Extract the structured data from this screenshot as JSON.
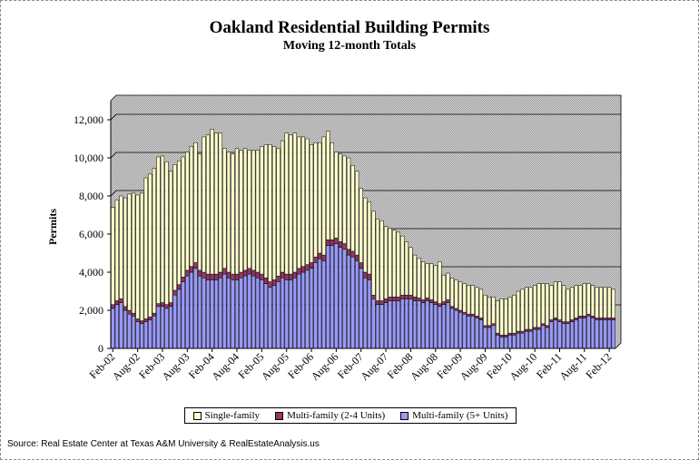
{
  "colors": {
    "single": "#FFFFCC",
    "multi_small": "#993366",
    "multi_large": "#9999FF",
    "plot_bg": "#C0C0C0"
  },
  "chart_data": {
    "type": "bar",
    "stacked": true,
    "title": "Oakland Residential Building Permits",
    "subtitle": "Moving 12-month Totals",
    "ylabel": "Permits",
    "xlabel": "",
    "ylim": [
      0,
      13000
    ],
    "yticks": [
      0,
      2000,
      4000,
      6000,
      8000,
      10000,
      12000
    ],
    "ytick_labels": [
      "0",
      "2,000",
      "4,000",
      "6,000",
      "8,000",
      "10,000",
      "12,000"
    ],
    "xtick_labels": [
      "Feb-02",
      "Aug-02",
      "Feb-03",
      "Aug-03",
      "Feb-04",
      "Aug-04",
      "Feb-05",
      "Aug-05",
      "Feb-06",
      "Aug-06",
      "Feb-07",
      "Aug-07",
      "Feb-08",
      "Aug-08",
      "Feb-09",
      "Aug-09",
      "Feb-10",
      "Aug-10",
      "Feb-11",
      "Aug-11",
      "Feb-12"
    ],
    "grid": true,
    "legend_position": "bottom",
    "series": [
      {
        "name": "Multi-family (5+ Units)",
        "values": [
          2100,
          2300,
          2400,
          2000,
          1800,
          1700,
          1400,
          1300,
          1400,
          1500,
          1700,
          2200,
          2200,
          2100,
          2200,
          2800,
          3100,
          3500,
          3800,
          4000,
          4200,
          3800,
          3700,
          3600,
          3600,
          3600,
          3700,
          3900,
          3700,
          3600,
          3600,
          3700,
          3800,
          3900,
          3800,
          3700,
          3600,
          3400,
          3200,
          3300,
          3500,
          3700,
          3600,
          3600,
          3700,
          3900,
          4000,
          4100,
          4200,
          4500,
          4700,
          4600,
          5400,
          5400,
          5500,
          5300,
          5200,
          4900,
          4800,
          4600,
          4200,
          3700,
          3600,
          2600,
          2300,
          2300,
          2400,
          2500,
          2500,
          2500,
          2600,
          2600,
          2600,
          2500,
          2500,
          2400,
          2500,
          2400,
          2300,
          2200,
          2300,
          2400,
          2100,
          2000,
          1900,
          1800,
          1700,
          1700,
          1600,
          1500,
          1100,
          1100,
          1200,
          700,
          600,
          600,
          700,
          700,
          800,
          800,
          900,
          900,
          1000,
          1000,
          1200,
          1100,
          1400,
          1500,
          1400,
          1300,
          1300,
          1400,
          1500,
          1600,
          1600,
          1700,
          1600,
          1500,
          1500,
          1500,
          1500,
          1500
        ]
      },
      {
        "name": "Multi-family (2-4 Units)",
        "values": [
          200,
          200,
          200,
          200,
          200,
          150,
          150,
          150,
          150,
          150,
          150,
          150,
          200,
          200,
          200,
          250,
          250,
          250,
          300,
          300,
          300,
          300,
          300,
          300,
          300,
          300,
          300,
          300,
          300,
          300,
          300,
          300,
          300,
          300,
          300,
          300,
          300,
          300,
          300,
          300,
          300,
          300,
          300,
          300,
          300,
          300,
          300,
          300,
          300,
          300,
          300,
          300,
          300,
          300,
          300,
          300,
          300,
          300,
          300,
          300,
          300,
          300,
          300,
          200,
          200,
          200,
          200,
          200,
          200,
          200,
          200,
          200,
          200,
          200,
          150,
          150,
          150,
          150,
          150,
          150,
          150,
          150,
          100,
          100,
          100,
          100,
          100,
          100,
          100,
          100,
          100,
          100,
          100,
          100,
          100,
          100,
          100,
          100,
          100,
          100,
          100,
          100,
          100,
          100,
          100,
          100,
          100,
          100,
          100,
          100,
          100,
          100,
          100,
          100,
          100,
          100,
          100,
          100,
          100,
          100,
          100,
          100
        ]
      },
      {
        "name": "Single-family",
        "values": [
          5100,
          5300,
          5400,
          5700,
          6100,
          6300,
          6500,
          6700,
          7400,
          7500,
          7600,
          7700,
          7700,
          7500,
          6900,
          6600,
          6500,
          6300,
          6200,
          6300,
          6300,
          6100,
          7100,
          7300,
          7600,
          7400,
          7300,
          6300,
          6300,
          6300,
          6600,
          6400,
          6400,
          6200,
          6300,
          6400,
          6700,
          7000,
          7200,
          7000,
          6700,
          6900,
          7400,
          7300,
          7300,
          6900,
          6800,
          6600,
          6200,
          6000,
          5800,
          6200,
          5700,
          5100,
          4500,
          4600,
          4600,
          4800,
          4500,
          4400,
          3900,
          3900,
          3800,
          4400,
          4300,
          4200,
          3800,
          3600,
          3500,
          3400,
          3100,
          2800,
          2500,
          2200,
          2100,
          2000,
          1800,
          1900,
          1900,
          2200,
          1400,
          1400,
          1500,
          1500,
          1500,
          1500,
          1500,
          1500,
          1500,
          1500,
          1600,
          1500,
          1400,
          1700,
          1900,
          1900,
          1900,
          2000,
          2100,
          2200,
          2200,
          2200,
          2200,
          2300,
          2100,
          2200,
          1800,
          1900,
          2000,
          1900,
          1700,
          1700,
          1700,
          1600,
          1700,
          1600,
          1600,
          1600,
          1600,
          1600,
          1600,
          1500
        ]
      }
    ]
  },
  "legend": {
    "single": "Single-family",
    "multi_small": "Multi-family (2-4 Units)",
    "multi_large": "Multi-family (5+ Units)"
  },
  "source": "Source: Real Estate Center at Texas A&M University & RealEstateAnalysis.us"
}
